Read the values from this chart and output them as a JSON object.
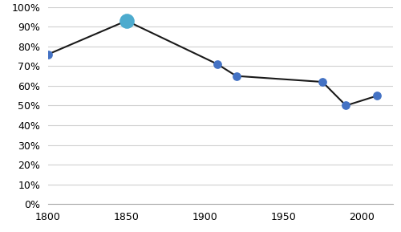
{
  "x": [
    1800,
    1850,
    1908,
    1920,
    1975,
    1990,
    2010
  ],
  "y": [
    0.76,
    0.93,
    0.71,
    0.65,
    0.62,
    0.5,
    0.55
  ],
  "marker_sizes": [
    60,
    180,
    60,
    60,
    60,
    60,
    60
  ],
  "line_color": "#1a1a1a",
  "marker_color_regular": "#4472c4",
  "marker_color_highlight": "#4dabce",
  "highlight_index": 1,
  "xlim": [
    1800,
    2020
  ],
  "ylim": [
    0.0,
    1.0
  ],
  "yticks": [
    0.0,
    0.1,
    0.2,
    0.3,
    0.4,
    0.5,
    0.6,
    0.7,
    0.8,
    0.9,
    1.0
  ],
  "xticks": [
    1800,
    1850,
    1900,
    1950,
    2000
  ],
  "background_color": "#ffffff",
  "grid_color": "#d0d0d0",
  "tick_label_fontsize": 9,
  "linewidth": 1.5
}
